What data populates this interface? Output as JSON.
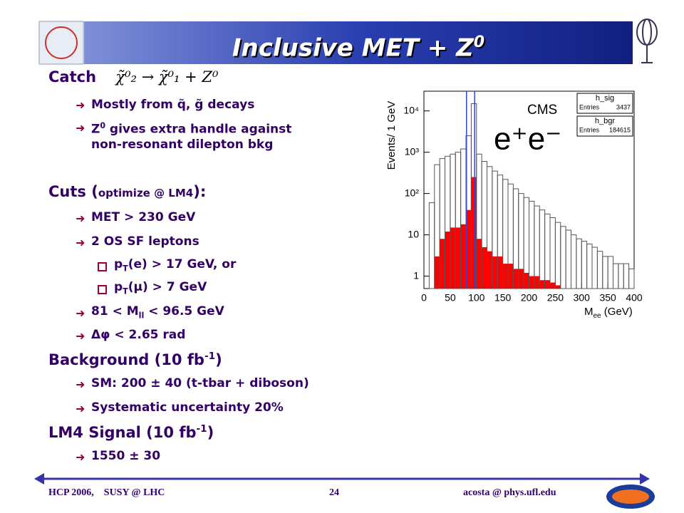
{
  "slide": {
    "title": [
      "Inclusive MET + Z",
      "0"
    ],
    "catch": {
      "heading": "Catch",
      "formula": "χ̃⁰₂ → χ̃⁰₁ + Z⁰",
      "items": [
        [
          "Mostly from q̃, g̃ decays"
        ],
        [
          "Z",
          "0",
          " gives extra handle against",
          "non-resonant dilepton bkg"
        ]
      ]
    },
    "cuts": {
      "heading": [
        "Cuts (",
        "optimize @ LM4",
        "):"
      ],
      "items": [
        [
          "MET > 230 GeV"
        ],
        [
          "2 OS SF leptons"
        ],
        [
          "81 < M",
          "ll",
          " < 96.5 GeV"
        ],
        [
          "Δφ < 2.65 rad"
        ]
      ],
      "subitems": [
        [
          "p",
          "T",
          "(e) > 17 GeV, or"
        ],
        [
          "p",
          "T",
          "(μ) > 7 GeV"
        ]
      ]
    },
    "background": {
      "heading": [
        "Background (10 fb",
        "-1",
        ")"
      ],
      "items": [
        "SM: 200 ± 40 (t-tbar + diboson)",
        "Systematic uncertainty 20%"
      ]
    },
    "signal": {
      "heading": [
        "LM4 Signal (10 fb",
        "-1",
        ")"
      ],
      "items": [
        "1550 ± 30"
      ]
    },
    "footer": {
      "left": "HCP 2006,    SUSY @ LHC",
      "page": "24",
      "right": "acosta @ phys.ufl.edu"
    }
  },
  "chart_data": {
    "type": "histogram",
    "y_label": "Events/ 1 GeV",
    "x_label": [
      "M",
      "ee",
      " (GeV)"
    ],
    "annotations": [
      "CMS",
      "e⁺e⁻"
    ],
    "entries_label": "Entries",
    "bins": [
      0,
      10,
      20,
      30,
      40,
      50,
      60,
      70,
      80,
      90,
      100,
      110,
      120,
      130,
      140,
      150,
      160,
      170,
      180,
      190,
      200,
      210,
      220,
      230,
      240,
      250,
      260,
      270,
      280,
      290,
      300,
      310,
      320,
      330,
      340,
      350,
      360,
      370,
      380,
      390,
      400
    ],
    "series": [
      {
        "name": "h_sig",
        "entries": 3437,
        "color": "#ff0000",
        "values": [
          0,
          0,
          3,
          8,
          12,
          15,
          15,
          18,
          40,
          250,
          8,
          5,
          4,
          3,
          3,
          2,
          2,
          1.5,
          1.5,
          1.2,
          1,
          1,
          0.8,
          0.8,
          0.7,
          0.6,
          0,
          0,
          0,
          0,
          0,
          0,
          0,
          0,
          0,
          0,
          0,
          0,
          0,
          0
        ]
      },
      {
        "name": "h_bgr",
        "entries": 184615,
        "color": "#555555",
        "values": [
          0,
          60,
          500,
          700,
          800,
          900,
          1000,
          1200,
          2500,
          15000,
          900,
          600,
          450,
          350,
          280,
          220,
          170,
          130,
          100,
          80,
          65,
          50,
          40,
          32,
          26,
          20,
          16,
          13,
          10,
          8,
          7,
          6,
          5,
          4,
          3,
          3,
          2,
          2,
          2,
          1.5
        ]
      }
    ],
    "cut_lines": [
      81,
      96.5
    ],
    "cut_color": "#3344dd",
    "xlim": [
      0,
      400
    ],
    "xticks": [
      0,
      50,
      100,
      150,
      200,
      250,
      300,
      350,
      400
    ],
    "ylim": [
      0.5,
      30000
    ],
    "log_y": true,
    "yticks": [
      1,
      10,
      {
        "value": 100,
        "label": "10²"
      },
      {
        "value": 1000,
        "label": "10³"
      },
      {
        "value": 10000,
        "label": "10⁴"
      }
    ]
  }
}
